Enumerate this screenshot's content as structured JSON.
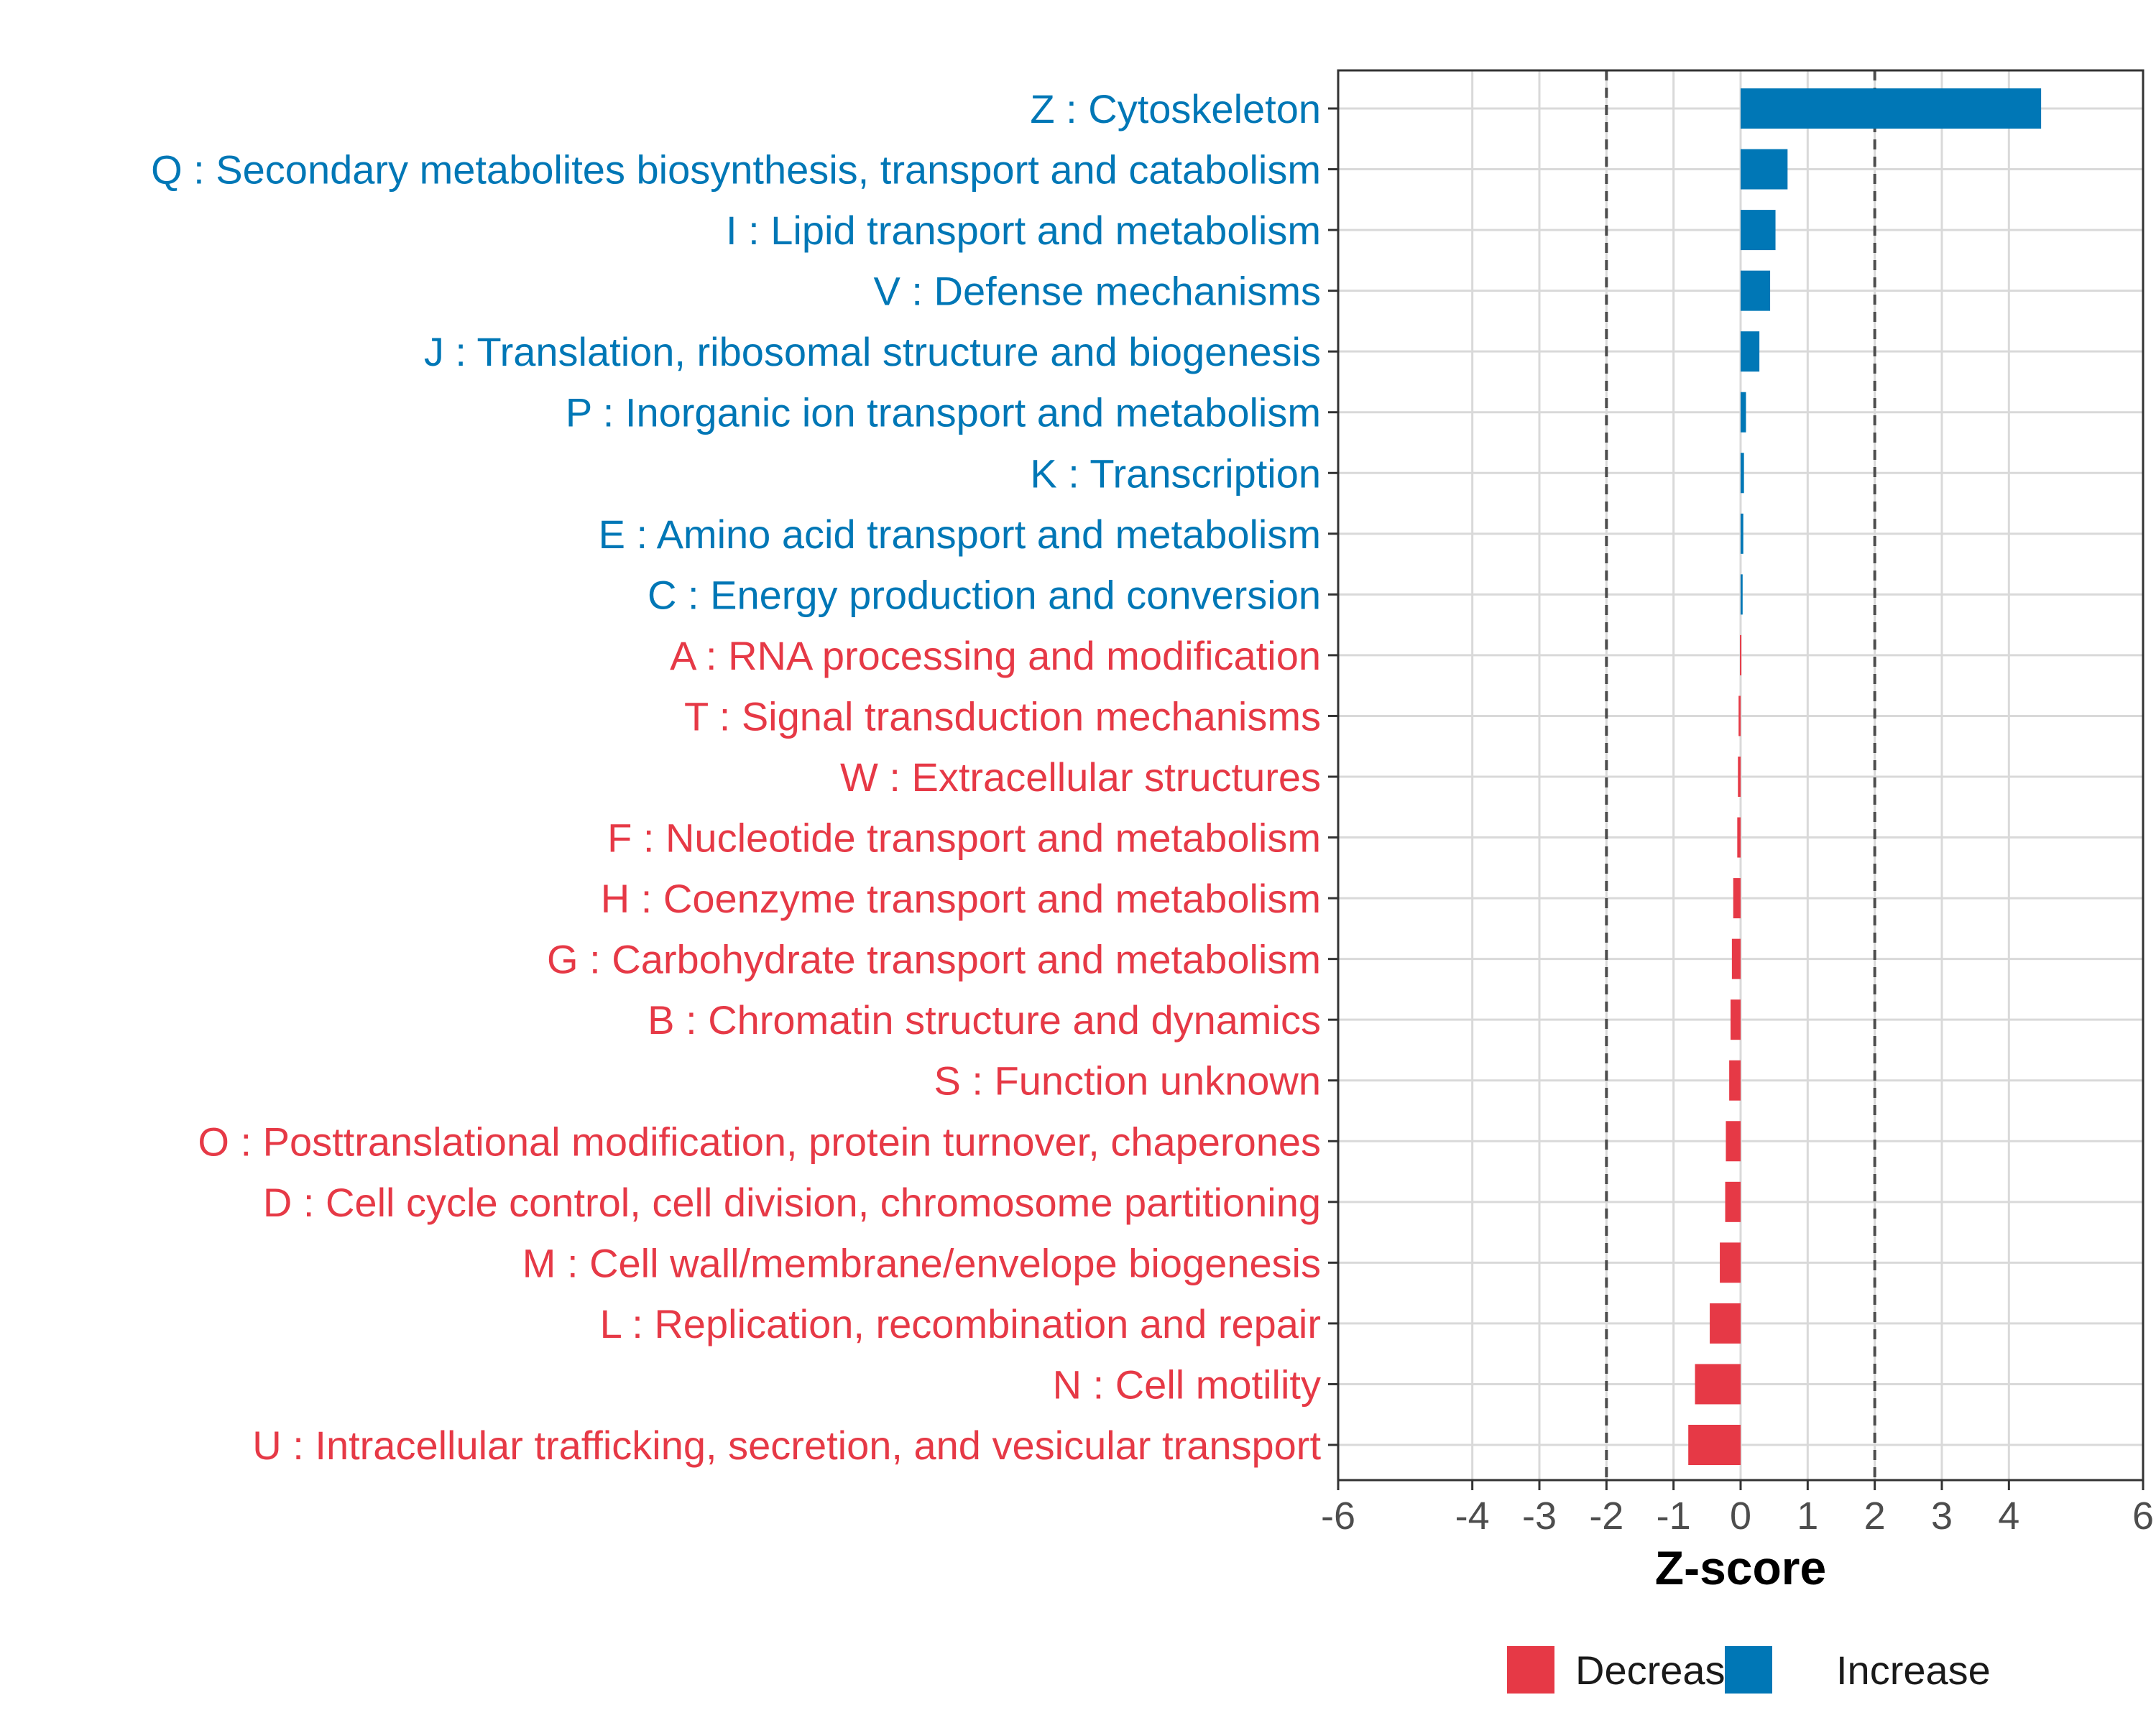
{
  "chart_data": {
    "type": "bar",
    "orientation": "horizontal",
    "xlabel": "Z-score",
    "xlim": [
      -6,
      6
    ],
    "xticks": [
      -6,
      -4,
      -3,
      -2,
      -1,
      0,
      1,
      2,
      3,
      4,
      6
    ],
    "reference_lines": [
      -2,
      2
    ],
    "grid": true,
    "legend": {
      "placement": "bottom-center",
      "entries": [
        {
          "label": "Decrease",
          "color": "#e63946"
        },
        {
          "label": "Increase",
          "color": "#0077b6"
        }
      ]
    },
    "colors": {
      "Increase": "#0077b6",
      "Decrease": "#e63946"
    },
    "categories": [
      "Z : Cytoskeleton",
      "Q : Secondary metabolites biosynthesis, transport and catabolism",
      "I : Lipid transport and metabolism",
      "V : Defense mechanisms",
      "J : Translation, ribosomal structure and biogenesis",
      "P : Inorganic ion transport and metabolism",
      "K : Transcription",
      "E : Amino acid transport and metabolism",
      "C : Energy production and conversion",
      "A : RNA processing and modification",
      "T : Signal transduction mechanisms",
      "W : Extracellular structures",
      "F : Nucleotide transport and metabolism",
      "H : Coenzyme transport and metabolism",
      "G : Carbohydrate transport and metabolism",
      "B : Chromatin structure and dynamics",
      "S : Function unknown",
      "O : Posttranslational modification, protein turnover, chaperones",
      "D : Cell cycle control, cell division, chromosome partitioning",
      "M : Cell wall/membrane/envelope biogenesis",
      "L : Replication, recombination and repair",
      "N : Cell motility",
      "U : Intracellular trafficking, secretion, and vesicular transport"
    ],
    "values": [
      4.48,
      0.7,
      0.52,
      0.44,
      0.28,
      0.08,
      0.05,
      0.04,
      0.03,
      -0.01,
      -0.03,
      -0.04,
      -0.05,
      -0.11,
      -0.13,
      -0.15,
      -0.17,
      -0.22,
      -0.23,
      -0.31,
      -0.46,
      -0.68,
      -0.78
    ],
    "direction": [
      "Increase",
      "Increase",
      "Increase",
      "Increase",
      "Increase",
      "Increase",
      "Increase",
      "Increase",
      "Increase",
      "Decrease",
      "Decrease",
      "Decrease",
      "Decrease",
      "Decrease",
      "Decrease",
      "Decrease",
      "Decrease",
      "Decrease",
      "Decrease",
      "Decrease",
      "Decrease",
      "Decrease",
      "Decrease"
    ]
  }
}
